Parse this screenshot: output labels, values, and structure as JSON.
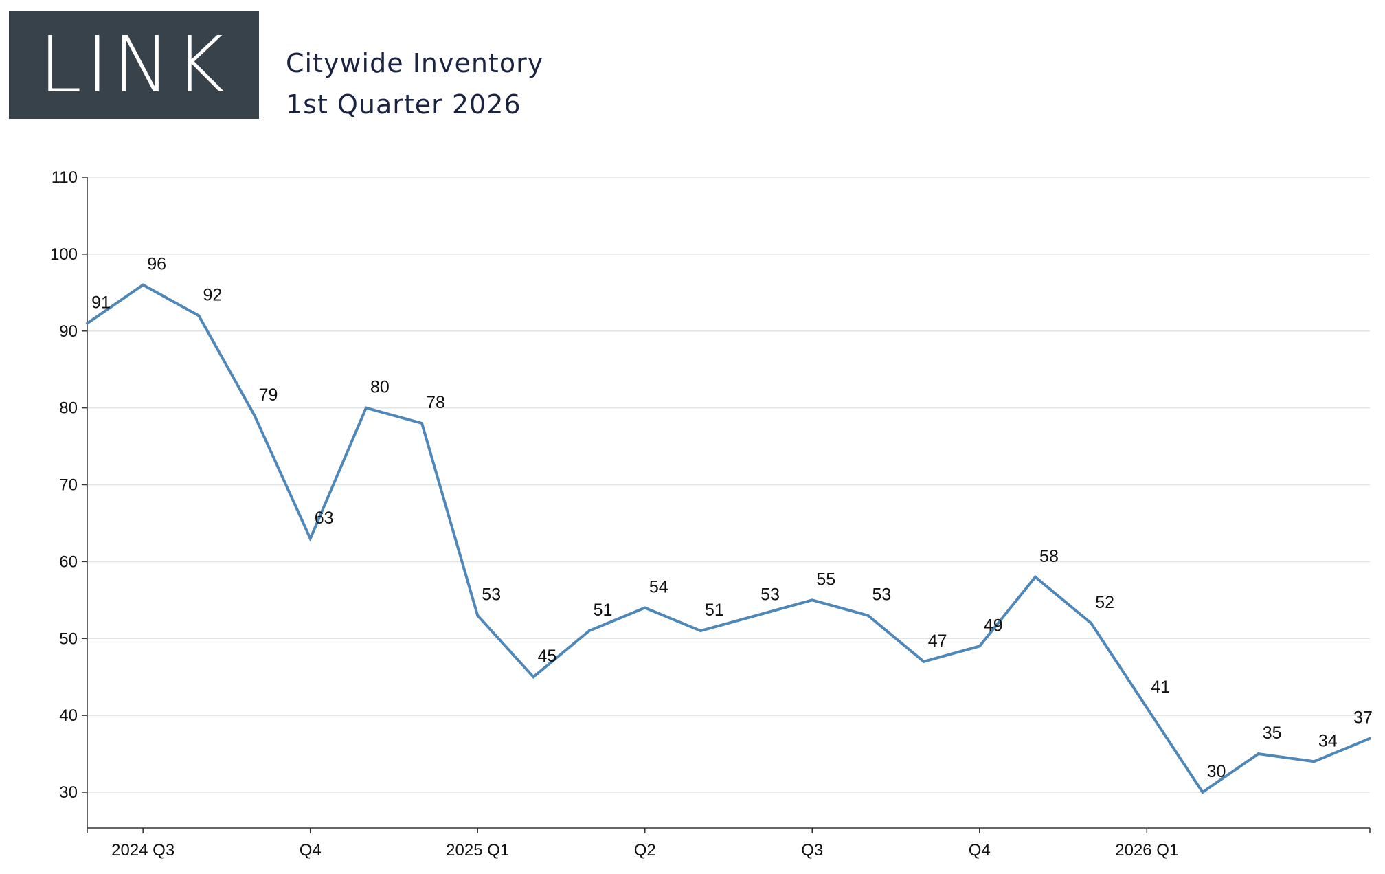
{
  "logo": {
    "text": "LINK"
  },
  "header": {
    "title": "Citywide Inventory",
    "subtitle": "1st Quarter 2026"
  },
  "colors": {
    "line": "#4f87b8",
    "logo_bg": "#37424b",
    "grid": "#e3e3e3",
    "axis": "#333333"
  },
  "chart_data": {
    "type": "line",
    "title": "",
    "xlabel": "",
    "ylabel": "",
    "ylim": [
      25,
      110
    ],
    "yticks": [
      30,
      40,
      50,
      60,
      70,
      80,
      90,
      100,
      110
    ],
    "grid": true,
    "x": [
      "2024-06",
      "2024-07",
      "2024-08",
      "2024-09",
      "2024-10",
      "2024-11",
      "2024-12",
      "2025-01",
      "2025-02",
      "2025-03",
      "2025-04",
      "2025-05",
      "2025-06",
      "2025-07",
      "2025-08",
      "2025-09",
      "2025-10",
      "2025-11",
      "2025-12",
      "2026-01",
      "2026-02",
      "2026-03",
      "2026-04",
      "2026-05"
    ],
    "xtick_labels": [
      {
        "x": "2024-07",
        "label": "2024 Q3"
      },
      {
        "x": "2024-10",
        "label": "Q4"
      },
      {
        "x": "2025-01",
        "label": "2025 Q1"
      },
      {
        "x": "2025-04",
        "label": "Q2"
      },
      {
        "x": "2025-07",
        "label": "Q3"
      },
      {
        "x": "2025-10",
        "label": "Q4"
      },
      {
        "x": "2026-01",
        "label": "2026 Q1"
      }
    ],
    "series": [
      {
        "values": [
          91,
          96,
          92,
          79,
          63,
          80,
          78,
          53,
          45,
          51,
          54,
          51,
          53,
          55,
          53,
          47,
          49,
          58,
          52,
          41,
          30,
          35,
          34,
          37
        ]
      }
    ]
  }
}
